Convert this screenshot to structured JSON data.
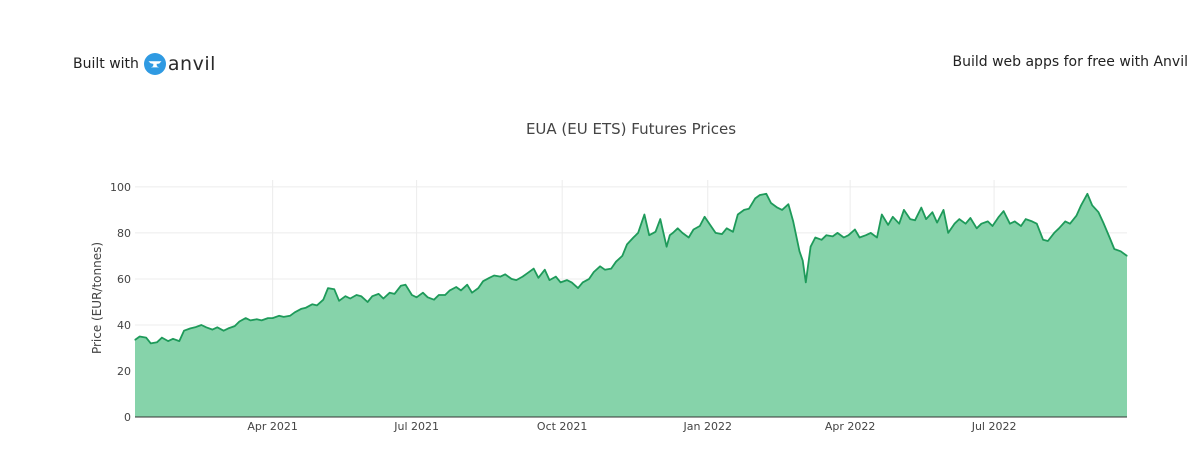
{
  "header": {
    "built_with_label": "Built with",
    "logo_word": "anvil",
    "promo_text": "Build web apps for free with Anvil"
  },
  "colors": {
    "line": "#1e9a5a",
    "fill": "#86d3aa",
    "grid": "#ececec",
    "axis_text": "#444444",
    "logo_blue": "#2f9ae2"
  },
  "chart_data": {
    "type": "area",
    "title": "EUA (EU ETS) Futures Prices",
    "xlabel": "",
    "ylabel": "Price (EUR/tonnes)",
    "ylim": [
      0,
      103
    ],
    "xlim": [
      "2021-01-04",
      "2022-09-23"
    ],
    "grid": true,
    "y_ticks": [
      0,
      20,
      40,
      60,
      80,
      100
    ],
    "x_ticks": [
      {
        "date": "2021-04-01",
        "label": "Apr 2021"
      },
      {
        "date": "2021-07-01",
        "label": "Jul 2021"
      },
      {
        "date": "2021-10-01",
        "label": "Oct 2021"
      },
      {
        "date": "2022-01-01",
        "label": "Jan 2022"
      },
      {
        "date": "2022-04-01",
        "label": "Apr 2022"
      },
      {
        "date": "2022-07-01",
        "label": "Jul 2022"
      }
    ],
    "x": [
      "2021-01-04",
      "2021-01-07",
      "2021-01-11",
      "2021-01-14",
      "2021-01-18",
      "2021-01-21",
      "2021-01-25",
      "2021-01-28",
      "2021-02-01",
      "2021-02-04",
      "2021-02-08",
      "2021-02-11",
      "2021-02-15",
      "2021-02-18",
      "2021-02-22",
      "2021-02-25",
      "2021-03-01",
      "2021-03-04",
      "2021-03-08",
      "2021-03-11",
      "2021-03-15",
      "2021-03-18",
      "2021-03-22",
      "2021-03-25",
      "2021-03-29",
      "2021-04-01",
      "2021-04-05",
      "2021-04-08",
      "2021-04-12",
      "2021-04-15",
      "2021-04-19",
      "2021-04-22",
      "2021-04-26",
      "2021-04-29",
      "2021-05-03",
      "2021-05-06",
      "2021-05-10",
      "2021-05-13",
      "2021-05-17",
      "2021-05-20",
      "2021-05-24",
      "2021-05-27",
      "2021-05-31",
      "2021-06-03",
      "2021-06-07",
      "2021-06-10",
      "2021-06-14",
      "2021-06-17",
      "2021-06-21",
      "2021-06-24",
      "2021-06-28",
      "2021-07-01",
      "2021-07-05",
      "2021-07-08",
      "2021-07-12",
      "2021-07-15",
      "2021-07-19",
      "2021-07-22",
      "2021-07-26",
      "2021-07-29",
      "2021-08-02",
      "2021-08-05",
      "2021-08-09",
      "2021-08-12",
      "2021-08-16",
      "2021-08-19",
      "2021-08-23",
      "2021-08-26",
      "2021-08-30",
      "2021-09-02",
      "2021-09-06",
      "2021-09-09",
      "2021-09-13",
      "2021-09-16",
      "2021-09-20",
      "2021-09-23",
      "2021-09-27",
      "2021-09-30",
      "2021-10-04",
      "2021-10-07",
      "2021-10-11",
      "2021-10-14",
      "2021-10-18",
      "2021-10-21",
      "2021-10-25",
      "2021-10-28",
      "2021-11-01",
      "2021-11-04",
      "2021-11-08",
      "2021-11-11",
      "2021-11-15",
      "2021-11-18",
      "2021-11-22",
      "2021-11-25",
      "2021-11-29",
      "2021-12-02",
      "2021-12-06",
      "2021-12-08",
      "2021-12-10",
      "2021-12-13",
      "2021-12-16",
      "2021-12-20",
      "2021-12-23",
      "2021-12-27",
      "2021-12-30",
      "2022-01-03",
      "2022-01-06",
      "2022-01-10",
      "2022-01-13",
      "2022-01-17",
      "2022-01-20",
      "2022-01-24",
      "2022-01-27",
      "2022-01-31",
      "2022-02-03",
      "2022-02-07",
      "2022-02-10",
      "2022-02-14",
      "2022-02-17",
      "2022-02-21",
      "2022-02-24",
      "2022-02-28",
      "2022-03-02",
      "2022-03-04",
      "2022-03-07",
      "2022-03-10",
      "2022-03-14",
      "2022-03-17",
      "2022-03-21",
      "2022-03-24",
      "2022-03-28",
      "2022-03-31",
      "2022-04-04",
      "2022-04-07",
      "2022-04-11",
      "2022-04-14",
      "2022-04-18",
      "2022-04-21",
      "2022-04-25",
      "2022-04-28",
      "2022-05-02",
      "2022-05-05",
      "2022-05-09",
      "2022-05-12",
      "2022-05-16",
      "2022-05-19",
      "2022-05-23",
      "2022-05-26",
      "2022-05-30",
      "2022-06-02",
      "2022-06-06",
      "2022-06-09",
      "2022-06-13",
      "2022-06-16",
      "2022-06-20",
      "2022-06-23",
      "2022-06-27",
      "2022-06-30",
      "2022-07-04",
      "2022-07-07",
      "2022-07-11",
      "2022-07-14",
      "2022-07-18",
      "2022-07-21",
      "2022-07-25",
      "2022-07-28",
      "2022-08-01",
      "2022-08-04",
      "2022-08-08",
      "2022-08-11",
      "2022-08-15",
      "2022-08-18",
      "2022-08-22",
      "2022-08-25",
      "2022-08-29",
      "2022-09-01",
      "2022-09-05",
      "2022-09-08",
      "2022-09-12",
      "2022-09-15",
      "2022-09-19",
      "2022-09-23"
    ],
    "series": [
      {
        "values": [
          33.5,
          35,
          34.5,
          32,
          32.5,
          34.5,
          33,
          34,
          33,
          37.5,
          38.5,
          39,
          40,
          39,
          38,
          39,
          37.5,
          38.5,
          39.5,
          41.5,
          43,
          42,
          42.5,
          42,
          43,
          43,
          44,
          43.5,
          44,
          45.5,
          47,
          47.5,
          49,
          48.5,
          51,
          56,
          55.5,
          50.5,
          52.5,
          51.5,
          53,
          52.5,
          50,
          52.5,
          53.5,
          51.5,
          54,
          53.5,
          57,
          57.5,
          53,
          52,
          54,
          52,
          51,
          53,
          53,
          55,
          56.5,
          55,
          57.5,
          54,
          56,
          59,
          60.5,
          61.5,
          61,
          62,
          60,
          59.5,
          61,
          62.5,
          64.5,
          60.5,
          64,
          59.5,
          61,
          58.5,
          59.5,
          58.5,
          56,
          58.5,
          60,
          63,
          65.5,
          64,
          64.5,
          67.5,
          70,
          75,
          78,
          80,
          88,
          79,
          80.5,
          86,
          74,
          79,
          80,
          82,
          80,
          78,
          81.5,
          83,
          87,
          83,
          80,
          79.5,
          82,
          80.5,
          88,
          90,
          90.5,
          95,
          96.5,
          97,
          93,
          91,
          90,
          92.5,
          85,
          72,
          68,
          58.5,
          74,
          78,
          77,
          79,
          78.5,
          80,
          78,
          79,
          81.5,
          78,
          79,
          80,
          78,
          88,
          83.5,
          87,
          84,
          90,
          86,
          85.5,
          91,
          86,
          89,
          84.5,
          90,
          80,
          84,
          86,
          84,
          86.5,
          82,
          84,
          85,
          83,
          87,
          89.5,
          84,
          85,
          83,
          86,
          85,
          84,
          77,
          76.5,
          80,
          82,
          85,
          84,
          87.5,
          92,
          97,
          92,
          89,
          84.5,
          78,
          73,
          72,
          70
        ]
      }
    ]
  }
}
